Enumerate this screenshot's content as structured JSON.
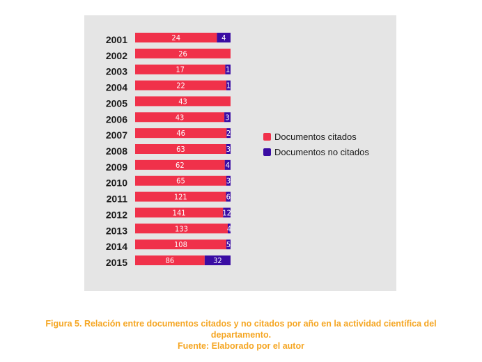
{
  "chart_data": {
    "type": "bar",
    "orientation": "horizontal",
    "stacked": true,
    "normalized": true,
    "categories": [
      "2001",
      "2002",
      "2003",
      "2004",
      "2005",
      "2006",
      "2007",
      "2008",
      "2009",
      "2010",
      "2011",
      "2012",
      "2013",
      "2014",
      "2015"
    ],
    "series": [
      {
        "name": "Documentos citados",
        "color": "#f0314a",
        "values": [
          24,
          26,
          17,
          22,
          43,
          43,
          46,
          63,
          62,
          65,
          121,
          141,
          133,
          108,
          86
        ]
      },
      {
        "name": "Documentos no citados",
        "color": "#3a0ca3",
        "values": [
          4,
          0,
          1,
          1,
          0,
          3,
          2,
          3,
          4,
          3,
          6,
          12,
          4,
          5,
          32
        ]
      }
    ],
    "legend_position": "right",
    "grid": false
  },
  "caption": {
    "line1": "Figura 5. Relación entre documentos citados y no citados por año en la actividad científica del",
    "line2": "departamento.",
    "line3": "Fuente: Elaborado por el autor"
  }
}
